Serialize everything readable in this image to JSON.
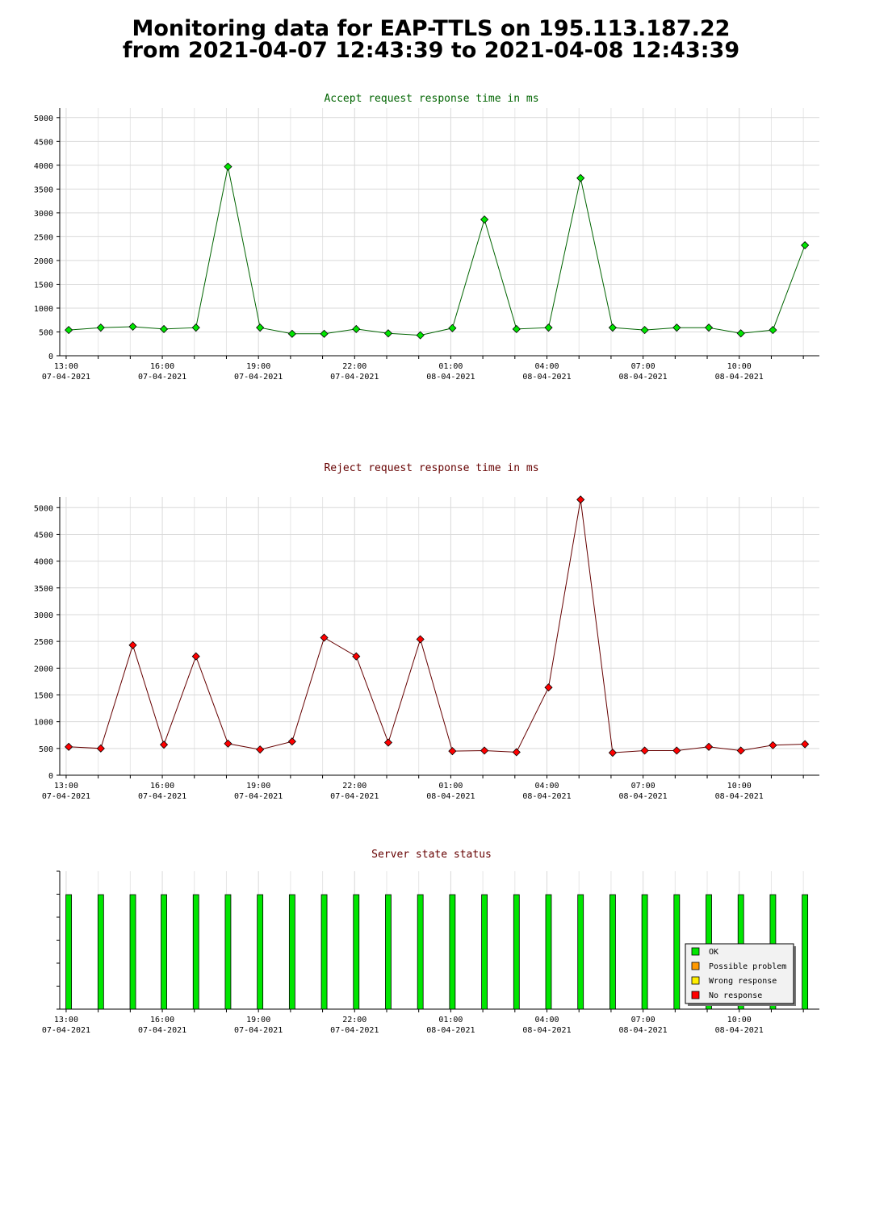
{
  "header": {
    "title_line1": "Monitoring data for EAP-TTLS on 195.113.187.22",
    "title_line2": "from 2021-04-07 12:43:39 to 2021-04-08 12:43:39"
  },
  "x_ticks": [
    {
      "time": "13:00",
      "date": "07-04-2021",
      "h": 13
    },
    {
      "time": "16:00",
      "date": "07-04-2021",
      "h": 16
    },
    {
      "time": "19:00",
      "date": "07-04-2021",
      "h": 19
    },
    {
      "time": "22:00",
      "date": "07-04-2021",
      "h": 22
    },
    {
      "time": "01:00",
      "date": "08-04-2021",
      "h": 25
    },
    {
      "time": "04:00",
      "date": "08-04-2021",
      "h": 28
    },
    {
      "time": "07:00",
      "date": "08-04-2021",
      "h": 31
    },
    {
      "time": "10:00",
      "date": "08-04-2021",
      "h": 34
    }
  ],
  "chart_data": [
    {
      "type": "line",
      "title": "Accept request response time in ms",
      "title_color": "#006400",
      "line_color": "#006400",
      "marker_color": "#00e600",
      "ylim": [
        0,
        5200
      ],
      "y_ticks": [
        0,
        500,
        1000,
        1500,
        2000,
        2500,
        3000,
        3500,
        4000,
        4500,
        5000
      ],
      "points": [
        {
          "x": 13.08,
          "y": 540
        },
        {
          "x": 14.08,
          "y": 590
        },
        {
          "x": 15.08,
          "y": 610
        },
        {
          "x": 16.05,
          "y": 560
        },
        {
          "x": 17.05,
          "y": 590
        },
        {
          "x": 18.05,
          "y": 3970
        },
        {
          "x": 19.05,
          "y": 590
        },
        {
          "x": 20.05,
          "y": 460
        },
        {
          "x": 21.05,
          "y": 460
        },
        {
          "x": 22.05,
          "y": 560
        },
        {
          "x": 23.05,
          "y": 470
        },
        {
          "x": 24.05,
          "y": 430
        },
        {
          "x": 25.05,
          "y": 580
        },
        {
          "x": 26.05,
          "y": 2860
        },
        {
          "x": 27.05,
          "y": 560
        },
        {
          "x": 28.05,
          "y": 590
        },
        {
          "x": 29.05,
          "y": 3730
        },
        {
          "x": 30.05,
          "y": 590
        },
        {
          "x": 31.05,
          "y": 540
        },
        {
          "x": 32.05,
          "y": 590
        },
        {
          "x": 33.05,
          "y": 590
        },
        {
          "x": 34.05,
          "y": 470
        },
        {
          "x": 35.05,
          "y": 540
        },
        {
          "x": 36.05,
          "y": 2320
        }
      ]
    },
    {
      "type": "line",
      "title": "Reject request response time in ms",
      "title_color": "#660000",
      "line_color": "#660000",
      "marker_color": "#ff0000",
      "ylim": [
        0,
        5200
      ],
      "y_ticks": [
        0,
        500,
        1000,
        1500,
        2000,
        2500,
        3000,
        3500,
        4000,
        4500,
        5000
      ],
      "points": [
        {
          "x": 13.08,
          "y": 530
        },
        {
          "x": 14.08,
          "y": 500
        },
        {
          "x": 15.08,
          "y": 2430
        },
        {
          "x": 16.05,
          "y": 570
        },
        {
          "x": 17.05,
          "y": 2220
        },
        {
          "x": 18.05,
          "y": 590
        },
        {
          "x": 19.05,
          "y": 480
        },
        {
          "x": 20.05,
          "y": 630
        },
        {
          "x": 21.05,
          "y": 2570
        },
        {
          "x": 22.05,
          "y": 2220
        },
        {
          "x": 23.05,
          "y": 610
        },
        {
          "x": 24.05,
          "y": 2540
        },
        {
          "x": 25.05,
          "y": 450
        },
        {
          "x": 26.05,
          "y": 460
        },
        {
          "x": 27.05,
          "y": 430
        },
        {
          "x": 28.05,
          "y": 1640
        },
        {
          "x": 29.05,
          "y": 5150
        },
        {
          "x": 30.05,
          "y": 420
        },
        {
          "x": 31.05,
          "y": 460
        },
        {
          "x": 32.05,
          "y": 460
        },
        {
          "x": 33.05,
          "y": 530
        },
        {
          "x": 34.05,
          "y": 460
        },
        {
          "x": 35.05,
          "y": 560
        },
        {
          "x": 36.05,
          "y": 580
        }
      ]
    },
    {
      "type": "bar",
      "title": "Server state status",
      "title_color": "#660000",
      "bar_level": 0.83,
      "x": [
        13.08,
        14.08,
        15.08,
        16.05,
        17.05,
        18.05,
        19.05,
        20.05,
        21.05,
        22.05,
        23.05,
        24.05,
        25.05,
        26.05,
        27.05,
        28.05,
        29.05,
        30.05,
        31.05,
        32.05,
        33.05,
        34.05,
        35.05,
        36.05
      ],
      "states": [
        "OK",
        "OK",
        "OK",
        "OK",
        "OK",
        "OK",
        "OK",
        "OK",
        "OK",
        "OK",
        "OK",
        "OK",
        "OK",
        "OK",
        "OK",
        "OK",
        "OK",
        "OK",
        "OK",
        "OK",
        "OK",
        "OK",
        "OK",
        "OK"
      ],
      "legend": [
        {
          "label": "OK",
          "color": "#00e600"
        },
        {
          "label": "Possible problem",
          "color": "#ff9900"
        },
        {
          "label": "Wrong response",
          "color": "#ffee00"
        },
        {
          "label": "No response",
          "color": "#ff0000"
        }
      ],
      "legend_position": "bottom-right"
    }
  ]
}
